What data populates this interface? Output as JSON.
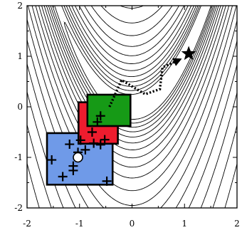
{
  "chart_data": {
    "type": "diagram",
    "title": "",
    "xlabel": "",
    "ylabel": "",
    "xlim": [
      -2,
      2
    ],
    "ylim": [
      -2,
      2
    ],
    "x_ticks": [
      "-2",
      "-1",
      "0",
      "1",
      "2"
    ],
    "y_ticks": [
      "2",
      "1",
      "0",
      "-1",
      "-2"
    ],
    "colors": {
      "blue_box": "#6f9ae8",
      "red_box": "#ee1c2e",
      "green_box": "#169a16",
      "path": "#000000"
    },
    "boxes": [
      {
        "name": "blue",
        "x0": -1.62,
        "x1": -0.37,
        "y0": -1.54,
        "y1": -0.52
      },
      {
        "name": "red",
        "x0": -1.02,
        "x1": -0.27,
        "y0": -0.73,
        "y1": 0.09
      },
      {
        "name": "green",
        "x0": -0.85,
        "x1": -0.03,
        "y0": -0.38,
        "y1": 0.24
      }
    ],
    "samples": [
      [
        -1.53,
        -1.05
      ],
      [
        -1.32,
        -1.38
      ],
      [
        -1.12,
        -1.26
      ],
      [
        -1.12,
        -1.17
      ],
      [
        -1.03,
        -0.9
      ],
      [
        -0.89,
        -0.85
      ],
      [
        -0.73,
        -0.72
      ],
      [
        -0.6,
        -0.75
      ],
      [
        -0.48,
        -1.47
      ],
      [
        -1.19,
        -0.74
      ],
      [
        -0.98,
        -0.66
      ],
      [
        -0.76,
        -0.5
      ],
      [
        -0.52,
        -0.65
      ],
      [
        -0.66,
        -0.3
      ],
      [
        -0.6,
        -0.18
      ]
    ],
    "start_point": [
      -1.03,
      -1.0
    ],
    "path": [
      [
        -0.43,
        0.0
      ],
      [
        -0.2,
        0.53
      ],
      [
        0.25,
        0.25
      ],
      [
        0.53,
        0.35
      ],
      [
        0.58,
        0.78
      ],
      [
        0.9,
        0.93
      ]
    ],
    "goal": [
      1.08,
      1.05
    ]
  }
}
